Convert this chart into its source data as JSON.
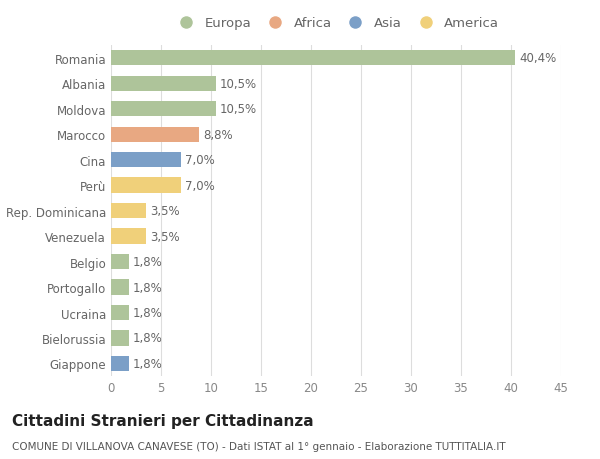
{
  "title": "Cittadini Stranieri per Cittadinanza",
  "subtitle": "COMUNE DI VILLANOVA CANAVESE (TO) - Dati ISTAT al 1° gennaio - Elaborazione TUTTITALIA.IT",
  "categories": [
    "Romania",
    "Albania",
    "Moldova",
    "Marocco",
    "Cina",
    "Perù",
    "Rep. Dominicana",
    "Venezuela",
    "Belgio",
    "Portogallo",
    "Ucraina",
    "Bielorussia",
    "Giappone"
  ],
  "values": [
    40.4,
    10.5,
    10.5,
    8.8,
    7.0,
    7.0,
    3.5,
    3.5,
    1.8,
    1.8,
    1.8,
    1.8,
    1.8
  ],
  "labels": [
    "40,4%",
    "10,5%",
    "10,5%",
    "8,8%",
    "7,0%",
    "7,0%",
    "3,5%",
    "3,5%",
    "1,8%",
    "1,8%",
    "1,8%",
    "1,8%",
    "1,8%"
  ],
  "continents": [
    "Europa",
    "Europa",
    "Europa",
    "Africa",
    "Asia",
    "America",
    "America",
    "America",
    "Europa",
    "Europa",
    "Europa",
    "Europa",
    "Asia"
  ],
  "continent_colors": {
    "Europa": "#aec49a",
    "Africa": "#e8a882",
    "Asia": "#7b9fc7",
    "America": "#f0d07a"
  },
  "legend_order": [
    "Europa",
    "Africa",
    "Asia",
    "America"
  ],
  "xlim": [
    0,
    45
  ],
  "xticks": [
    0,
    5,
    10,
    15,
    20,
    25,
    30,
    35,
    40,
    45
  ],
  "bg_color": "#ffffff",
  "grid_color": "#dddddd",
  "bar_height": 0.6,
  "label_fontsize": 8.5,
  "title_fontsize": 11,
  "subtitle_fontsize": 7.5,
  "tick_fontsize": 8.5,
  "legend_fontsize": 9.5
}
